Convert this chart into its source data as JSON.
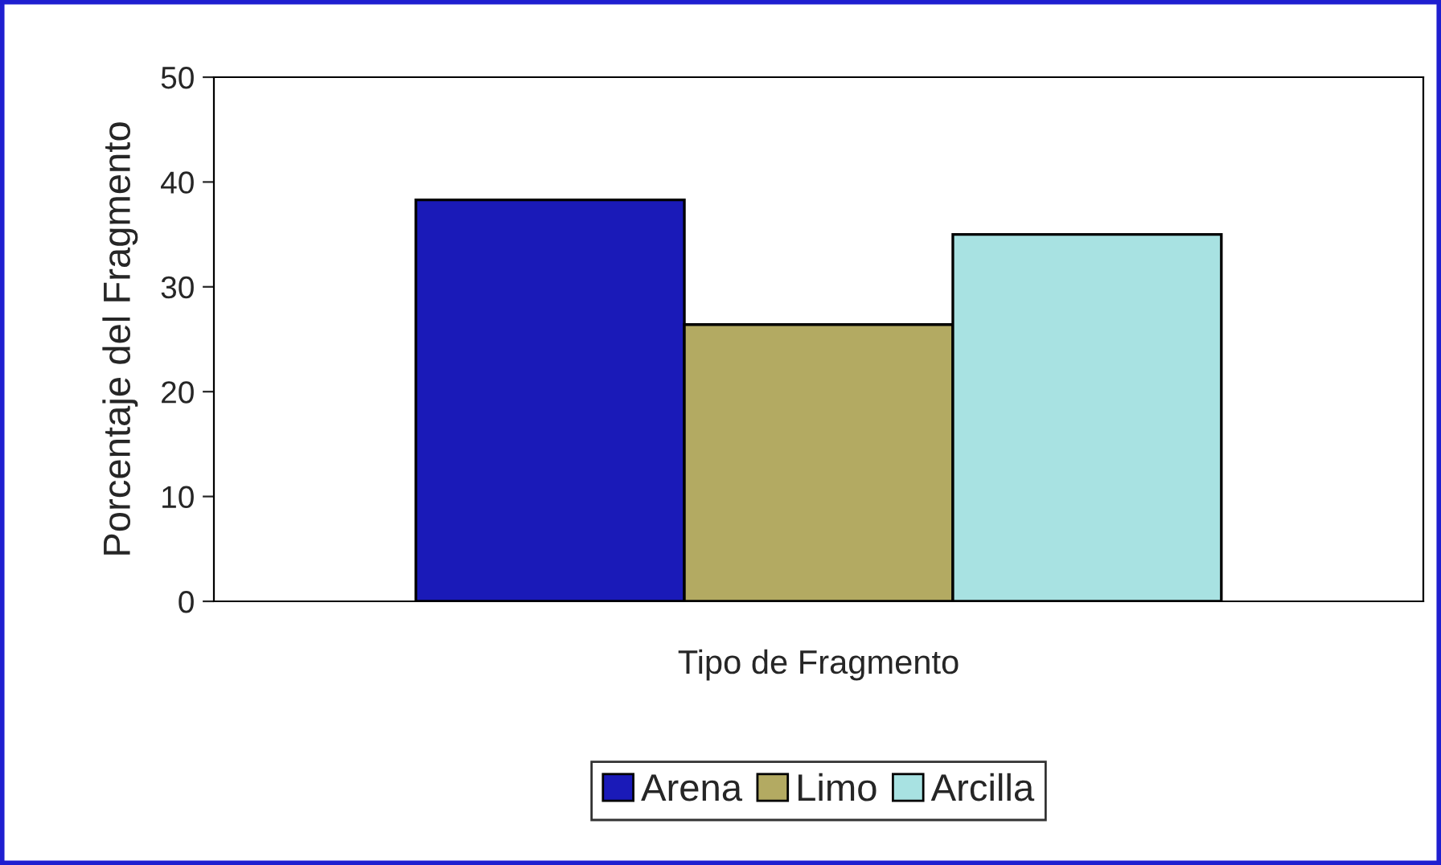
{
  "chart_data": {
    "type": "bar",
    "xlabel": "Tipo de Fragmento",
    "ylabel": "Porcentaje del Fragmento",
    "categories": [
      null
    ],
    "series": [
      {
        "name": "Arena",
        "color": "#1a1ab8",
        "values": [
          38.3
        ]
      },
      {
        "name": "Limo",
        "color": "#b3aa62",
        "values": [
          26.4
        ]
      },
      {
        "name": "Arcilla",
        "color": "#a8e2e2",
        "values": [
          35.0
        ]
      }
    ],
    "ylim": [
      0,
      50
    ],
    "yticks": [
      0,
      10,
      20,
      30,
      40,
      50
    ],
    "grid": false,
    "legend": "bottom"
  }
}
